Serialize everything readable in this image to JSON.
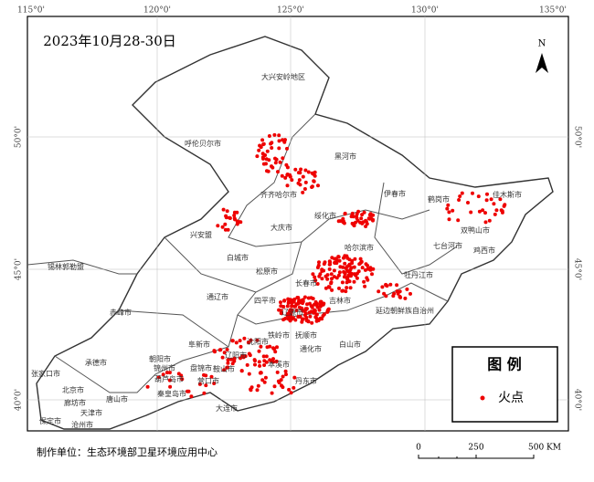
{
  "title": "2023年10月28-30日",
  "longitude_labels": [
    "115°0'",
    "120°0'",
    "125°0'",
    "130°0'",
    "135°0'"
  ],
  "latitude_labels": [
    "50°0'",
    "45°0'",
    "40°0'"
  ],
  "north": "N",
  "regions": [
    "大兴安岭地区",
    "呼伦贝尔市",
    "黑河市",
    "齐齐哈尔市",
    "伊春市",
    "鹤岗市",
    "佳木斯市",
    "绥化市",
    "大庆市",
    "双鸭山市",
    "哈尔滨市",
    "七台河市",
    "鸡西市",
    "兴安盟",
    "白城市",
    "松原市",
    "牡丹江市",
    "锡林郭勒盟",
    "长春市",
    "吉林市",
    "通辽市",
    "四平市",
    "延边朝鲜族自治州",
    "辽源市",
    "赤峰市",
    "白山市",
    "通化市",
    "铁岭市",
    "抚顺市",
    "沈阳市",
    "本溪市",
    "朝阳市",
    "阜新市",
    "辽阳市",
    "鞍山市",
    "丹东市",
    "营口市",
    "锦州市",
    "盘锦市",
    "葫芦岛市",
    "秦皇岛市",
    "唐山市",
    "承德市",
    "张家口市",
    "北京市",
    "廊坊市",
    "天津市",
    "保定市",
    "沧州市",
    "大连市"
  ],
  "legend": {
    "title": "图 例",
    "items": [
      "火点"
    ]
  },
  "scale_bar": {
    "labels": [
      "0",
      "250",
      "500 KM"
    ]
  },
  "credit": "制作单位：生态环境部卫星环境应用中心"
}
